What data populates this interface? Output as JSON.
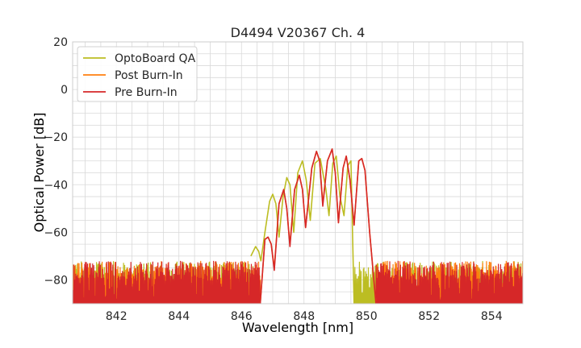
{
  "chart_data": {
    "type": "line",
    "title": "D4494 V20367 Ch. 4",
    "xlabel": "Wavelength [nm]",
    "ylabel": "Optical Power [dB]",
    "xlim": [
      840.6,
      855.0
    ],
    "ylim": [
      -90,
      20
    ],
    "xticks": [
      842,
      844,
      846,
      848,
      850,
      852,
      854
    ],
    "yticks": [
      20,
      0,
      -20,
      -40,
      -60,
      -80
    ],
    "ytick_labels": [
      "20",
      "0",
      "−20",
      "−40",
      "−60",
      "−80"
    ],
    "grid": true,
    "legend_position": "top-left",
    "noise": {
      "floor_bottom": -90,
      "floor_top_range": [
        -72,
        -80
      ],
      "segments": [
        {
          "series": "OptoBoard QA",
          "x_range": [
            840.6,
            846.4
          ]
        },
        {
          "series": "OptoBoard QA",
          "x_range": [
            849.6,
            855.0
          ]
        },
        {
          "series": "Post Burn-In",
          "x_range": [
            840.6,
            846.6
          ]
        },
        {
          "series": "Post Burn-In",
          "x_range": [
            850.3,
            855.0
          ]
        },
        {
          "series": "Pre Burn-In",
          "x_range": [
            840.6,
            846.6
          ]
        },
        {
          "series": "Pre Burn-In",
          "x_range": [
            850.3,
            855.0
          ]
        }
      ]
    },
    "series": [
      {
        "name": "OptoBoard QA",
        "color": "#bcbd22",
        "x": [
          846.3,
          846.45,
          846.55,
          846.62,
          846.75,
          846.9,
          847.0,
          847.1,
          847.2,
          847.33,
          847.45,
          847.55,
          847.67,
          847.8,
          847.95,
          848.07,
          848.2,
          848.35,
          848.52,
          848.7,
          848.8,
          848.92,
          849.03,
          849.15,
          849.28,
          849.4,
          849.5,
          849.6
        ],
        "y": [
          -70,
          -66,
          -68,
          -72,
          -60,
          -47,
          -44,
          -48,
          -62,
          -45,
          -37,
          -40,
          -60,
          -35,
          -30,
          -38,
          -55,
          -31,
          -29,
          -42,
          -53,
          -31,
          -28,
          -45,
          -53,
          -32,
          -30,
          -90
        ]
      },
      {
        "name": "Post Burn-In",
        "color": "#ff7f0e",
        "x": [
          846.6,
          846.75,
          846.85,
          846.95,
          847.05,
          847.2,
          847.35,
          847.45,
          847.55,
          847.7,
          847.85,
          847.95,
          848.05,
          848.25,
          848.4,
          848.5,
          848.6,
          848.75,
          848.9,
          849.0,
          849.1,
          849.25,
          849.35,
          849.47,
          849.6,
          849.75,
          849.85,
          849.95,
          850.1,
          850.3
        ],
        "y": [
          -90,
          -63,
          -62,
          -65,
          -75,
          -48,
          -42,
          -50,
          -65,
          -42,
          -36,
          -42,
          -58,
          -33,
          -26,
          -30,
          -48,
          -30,
          -25,
          -35,
          -56,
          -33,
          -28,
          -38,
          -57,
          -30,
          -29,
          -34,
          -60,
          -90
        ]
      },
      {
        "name": "Pre Burn-In",
        "color": "#d62728",
        "x": [
          846.6,
          846.75,
          846.85,
          846.95,
          847.05,
          847.2,
          847.35,
          847.45,
          847.55,
          847.7,
          847.85,
          847.95,
          848.05,
          848.25,
          848.4,
          848.5,
          848.6,
          848.75,
          848.9,
          849.0,
          849.1,
          849.25,
          849.35,
          849.47,
          849.6,
          849.75,
          849.85,
          849.95,
          850.1,
          850.3
        ],
        "y": [
          -90,
          -63,
          -62,
          -65,
          -76,
          -48,
          -42,
          -50,
          -66,
          -42,
          -36,
          -42,
          -58,
          -33,
          -26,
          -30,
          -49,
          -30,
          -25,
          -35,
          -56,
          -33,
          -28,
          -38,
          -57,
          -30,
          -29,
          -34,
          -60,
          -90
        ]
      }
    ]
  }
}
